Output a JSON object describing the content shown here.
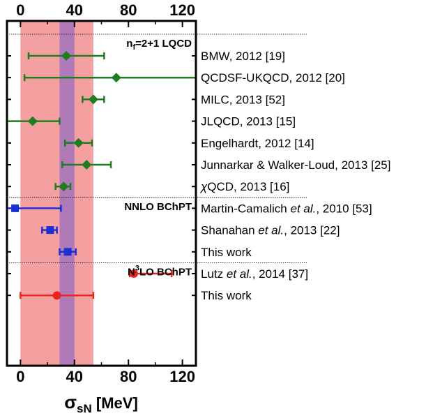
{
  "chart_data": {
    "type": "scatter",
    "xlabel": "σ",
    "xlabel_sub": "sN",
    "xlabel_unit": " [MeV]",
    "xlim": [
      -10,
      130
    ],
    "xticks": [
      0,
      40,
      80,
      120
    ],
    "minor_ticks": [
      20,
      60,
      100
    ],
    "bands": [
      {
        "name": "wide",
        "from": 0,
        "to": 54,
        "color": "#f4a0a0"
      },
      {
        "name": "narrow",
        "from": 29,
        "to": 40,
        "color": "#b07ab8"
      }
    ],
    "groups": [
      {
        "label": "n",
        "label_sub": "f",
        "label_rest": "=2+1 LQCD",
        "after_row": -1
      },
      {
        "label": "NNLO BChPT",
        "after_row": 6
      },
      {
        "label": "N",
        "label_sup": "3",
        "label_rest": "LO BChPT",
        "after_row": 9
      }
    ],
    "rows": [
      {
        "label": "BMW, 2012 [19]",
        "value": 34,
        "low": 6,
        "high": 62,
        "color": "#1e7d1e",
        "marker": "diamond"
      },
      {
        "label": "QCDSF-UKQCD, 2012 [20]",
        "value": 71,
        "low": 3,
        "high": 130,
        "color": "#1e7d1e",
        "marker": "diamond"
      },
      {
        "label": "MILC, 2013 [52]",
        "value": 54,
        "low": 46,
        "high": 62,
        "color": "#1e7d1e",
        "marker": "diamond"
      },
      {
        "label": "JLQCD, 2013 [15]",
        "value": 9,
        "low": -10,
        "high": 29,
        "color": "#1e7d1e",
        "marker": "diamond"
      },
      {
        "label": "Engelhardt, 2012 [14]",
        "value": 43,
        "low": 33,
        "high": 53,
        "color": "#1e7d1e",
        "marker": "diamond"
      },
      {
        "label": "Junnarkar & Walker-Loud, 2013 [25]",
        "value": 49,
        "low": 31,
        "high": 67,
        "color": "#1e7d1e",
        "marker": "diamond"
      },
      {
        "label_pre": "χ",
        "label": "QCD, 2013 [16]",
        "value": 32,
        "low": 26,
        "high": 37,
        "color": "#1e7d1e",
        "marker": "diamond"
      },
      {
        "label": "Martin-Camalich",
        "label_em": "et al.",
        "label_post": ", 2010 [53]",
        "value": -4,
        "low": -10,
        "high": 30,
        "color": "#1a2fd6",
        "marker": "square"
      },
      {
        "label": "Shanahan",
        "label_em": "et al.",
        "label_post": ", 2013 [22]",
        "value": 22,
        "low": 16,
        "high": 27,
        "color": "#1a2fd6",
        "marker": "square"
      },
      {
        "label": "This work",
        "value": 35,
        "low": 29,
        "high": 41,
        "color": "#1a2fd6",
        "marker": "square"
      },
      {
        "label": "Lutz",
        "label_em": "et al.",
        "label_post": ", 2014 [37]",
        "value": 84,
        "low": 81,
        "high": 112,
        "color": "#e8261f",
        "marker": "circle"
      },
      {
        "label": "This work",
        "value": 27,
        "low": 0,
        "high": 54,
        "color": "#e8261f",
        "marker": "circle"
      }
    ]
  }
}
